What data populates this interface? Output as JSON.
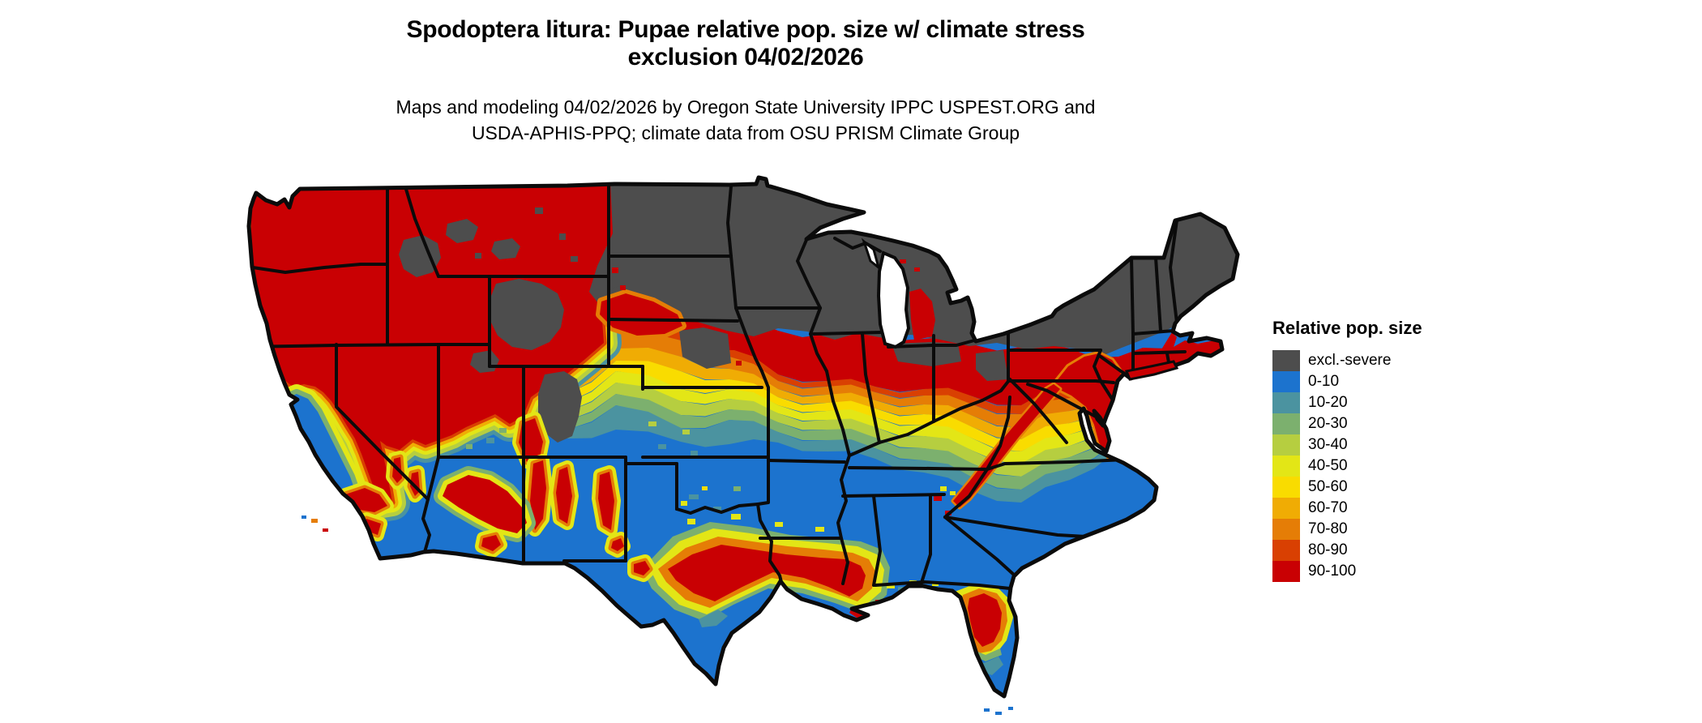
{
  "title": {
    "line1": "Spodoptera litura: Pupae relative pop. size w/ climate stress",
    "line2": "exclusion 04/02/2026"
  },
  "subtitle": {
    "line1": "Maps and modeling 04/02/2026 by Oregon State University IPPC USPEST.ORG and",
    "line2": "USDA-APHIS-PPQ; climate data from OSU PRISM Climate Group"
  },
  "legend": {
    "title": "Relative pop. size",
    "items": [
      {
        "label": "excl.-severe",
        "color": "#4D4D4D"
      },
      {
        "label": "0-10",
        "color": "#1C73CE"
      },
      {
        "label": "10-20",
        "color": "#4B93A0"
      },
      {
        "label": "20-30",
        "color": "#7CB06E"
      },
      {
        "label": "30-40",
        "color": "#B6CE40"
      },
      {
        "label": "40-50",
        "color": "#E3E616"
      },
      {
        "label": "50-60",
        "color": "#F9DC00"
      },
      {
        "label": "60-70",
        "color": "#F0AC04"
      },
      {
        "label": "70-80",
        "color": "#E57D06"
      },
      {
        "label": "80-90",
        "color": "#D94002"
      },
      {
        "label": "90-100",
        "color": "#C90003"
      }
    ]
  },
  "map_data": {
    "type": "choropleth-raster",
    "region": "Continental United States",
    "categories": [
      "excl.-severe",
      "0-10",
      "10-20",
      "20-30",
      "30-40",
      "40-50",
      "50-60",
      "60-70",
      "70-80",
      "80-90",
      "90-100"
    ],
    "gradient_order": [
      "90-100",
      "80-90",
      "70-80",
      "60-70",
      "50-60",
      "40-50",
      "30-40",
      "20-30",
      "10-20"
    ],
    "zones": {
      "base": "0-10",
      "pacific_northwest_block": "90-100",
      "north_exclusion": "excl.-severe",
      "wyoming_highlands": "excl.-severe",
      "colorado_highlands": "excl.-severe",
      "idaho_highlands": "excl.-severe",
      "montana_highlands_1": "excl.-severe",
      "montana_highlands_2": "excl.-severe",
      "uinta_highlands": "excl.-severe",
      "black_hills": "excl.-severe",
      "nebraska_east_tongue": "excl.-severe",
      "indiana_tongue": "excl.-severe",
      "ohio_tongue": "excl.-severe",
      "central_valley": "0-10",
      "nebraska_hotspot": "90-100",
      "michigan_west_hotspot": "90-100",
      "new_england_coast": "90-100",
      "maine_coast": "90-100",
      "njmd_hotspot": "90-100",
      "appalachian_streak": "90-100",
      "gulf_ring_outer": "20-30",
      "gulf_ring_mid": "40-50",
      "gulf_ring_inner": "70-80",
      "gulf_core": "90-100",
      "delta_arm": "90-100",
      "s_texas_sliver": "10-20",
      "florida_ring_outer": "40-50",
      "florida_ring_mid": "70-80",
      "florida_core": "90-100",
      "florida_green_band": "20-30",
      "florida_teal_band": "10-20",
      "co_nm_bridge": "90-100",
      "nm_range_1": "90-100",
      "nm_range_2": "90-100",
      "nm_range_3": "90-100",
      "az_mogollon": "90-100",
      "az_south_1": "90-100",
      "socal_range_1": "90-100",
      "socal_range_2": "90-100",
      "nv_range_1": "90-100",
      "nv_range_2": "90-100",
      "wtx_davis": "90-100",
      "wtx_guadalupe": "90-100",
      "long_island": "90-100"
    },
    "notable_regions": [
      {
        "area": "Upper Midwest and interior Northeast (ND, MN, WI, MI, upstate NY, northern New England)",
        "category": "excl.-severe"
      },
      {
        "area": "Pacific Northwest (WA, OR, ID, western MT, northern NV/UT)",
        "category": "90-100"
      },
      {
        "area": "Rocky Mountain highlands (WY, CO mountains, central ID)",
        "category": "excl.-severe"
      },
      {
        "area": "Lower Midwest band (central IL, IN, OH, southern PA, NJ, MD, DE)",
        "category": "90-100"
      },
      {
        "area": "Appalachian ridge (WV-VA-NC)",
        "category": "90-100"
      },
      {
        "area": "Great Plains transition (NE, KS, northern MO)",
        "category": "30-70 gradient"
      },
      {
        "area": "Mid-South (KY, TN, VA piedmont)",
        "category": "10-50 gradient"
      },
      {
        "area": "Deep South and Gulf lowlands (most of TX, MS, AL, GA, SC, southern FL)",
        "category": "0-10"
      },
      {
        "area": "Texas-Louisiana Gulf Coast strip",
        "category": "70-100"
      },
      {
        "area": "North-central Florida",
        "category": "90-100"
      },
      {
        "area": "California Central Valley and southern CA coast",
        "category": "0-10"
      },
      {
        "area": "Sierra Nevada and AZ/NM desert ranges",
        "category": "90-100"
      },
      {
        "area": "Southern New England and Maine coast",
        "category": "90-100"
      }
    ]
  }
}
